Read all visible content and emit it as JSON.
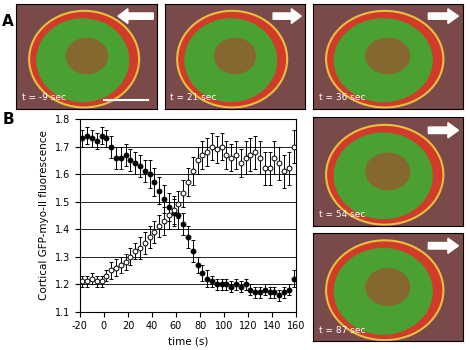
{
  "panel_labels": [
    "A",
    "B"
  ],
  "images": [
    {
      "label": "t = -9 sec",
      "arrow": "left"
    },
    {
      "label": "t = 21 sec",
      "arrow": "right"
    },
    {
      "label": "t = 36 sec",
      "arrow": "right"
    },
    {
      "label": "t = 54 sec",
      "arrow": "right"
    },
    {
      "label": "t = 87 sec",
      "arrow": "right"
    }
  ],
  "chart_data": {
    "type": "scatter",
    "x_label": "time (s)",
    "y_label": "Cortical GFP-myo-II fluorescence",
    "x": [
      -18,
      -14,
      -10,
      -6,
      -2,
      2,
      6,
      10,
      14,
      18,
      22,
      26,
      30,
      34,
      38,
      42,
      46,
      50,
      54,
      58,
      62,
      66,
      70,
      74,
      78,
      82,
      86,
      90,
      94,
      98,
      102,
      106,
      110,
      114,
      118,
      122,
      126,
      130,
      134,
      138,
      142,
      146,
      150,
      154,
      158
    ],
    "series": [
      {
        "color": "#000000",
        "marker": "o",
        "values": [
          1.73,
          1.74,
          1.73,
          1.72,
          1.74,
          1.73,
          1.7,
          1.66,
          1.66,
          1.67,
          1.65,
          1.64,
          1.63,
          1.61,
          1.6,
          1.57,
          1.54,
          1.51,
          1.48,
          1.46,
          1.45,
          1.42,
          1.37,
          1.32,
          1.27,
          1.24,
          1.22,
          1.21,
          1.2,
          1.2,
          1.2,
          1.19,
          1.2,
          1.19,
          1.2,
          1.18,
          1.17,
          1.17,
          1.18,
          1.17,
          1.17,
          1.16,
          1.17,
          1.18,
          1.22
        ],
        "errors": [
          0.03,
          0.03,
          0.03,
          0.03,
          0.03,
          0.03,
          0.04,
          0.04,
          0.04,
          0.04,
          0.04,
          0.04,
          0.04,
          0.04,
          0.05,
          0.05,
          0.05,
          0.05,
          0.05,
          0.05,
          0.05,
          0.04,
          0.04,
          0.04,
          0.03,
          0.03,
          0.03,
          0.02,
          0.02,
          0.02,
          0.02,
          0.02,
          0.02,
          0.02,
          0.02,
          0.02,
          0.02,
          0.02,
          0.02,
          0.02,
          0.02,
          0.02,
          0.02,
          0.02,
          0.03
        ]
      },
      {
        "color": "#ffffff",
        "marker": "o",
        "values": [
          1.21,
          1.21,
          1.22,
          1.21,
          1.21,
          1.23,
          1.25,
          1.26,
          1.27,
          1.28,
          1.3,
          1.32,
          1.33,
          1.35,
          1.37,
          1.39,
          1.41,
          1.43,
          1.45,
          1.47,
          1.49,
          1.53,
          1.57,
          1.61,
          1.65,
          1.67,
          1.68,
          1.7,
          1.69,
          1.7,
          1.67,
          1.66,
          1.67,
          1.64,
          1.66,
          1.67,
          1.68,
          1.66,
          1.62,
          1.62,
          1.66,
          1.64,
          1.61,
          1.62,
          1.7
        ],
        "errors": [
          0.02,
          0.02,
          0.02,
          0.02,
          0.02,
          0.02,
          0.03,
          0.03,
          0.03,
          0.03,
          0.03,
          0.03,
          0.04,
          0.04,
          0.04,
          0.04,
          0.04,
          0.05,
          0.05,
          0.05,
          0.05,
          0.05,
          0.05,
          0.05,
          0.05,
          0.05,
          0.05,
          0.05,
          0.05,
          0.05,
          0.05,
          0.05,
          0.05,
          0.05,
          0.06,
          0.06,
          0.06,
          0.06,
          0.06,
          0.06,
          0.06,
          0.06,
          0.06,
          0.06,
          0.06
        ]
      }
    ],
    "xlim": [
      -20,
      160
    ],
    "xticks": [
      -20,
      0,
      20,
      40,
      60,
      80,
      100,
      120,
      140,
      160
    ],
    "ylim": [
      1.1,
      1.8
    ],
    "yticks": [
      1.1,
      1.2,
      1.3,
      1.4,
      1.5,
      1.6,
      1.7,
      1.8
    ],
    "grid": true
  }
}
